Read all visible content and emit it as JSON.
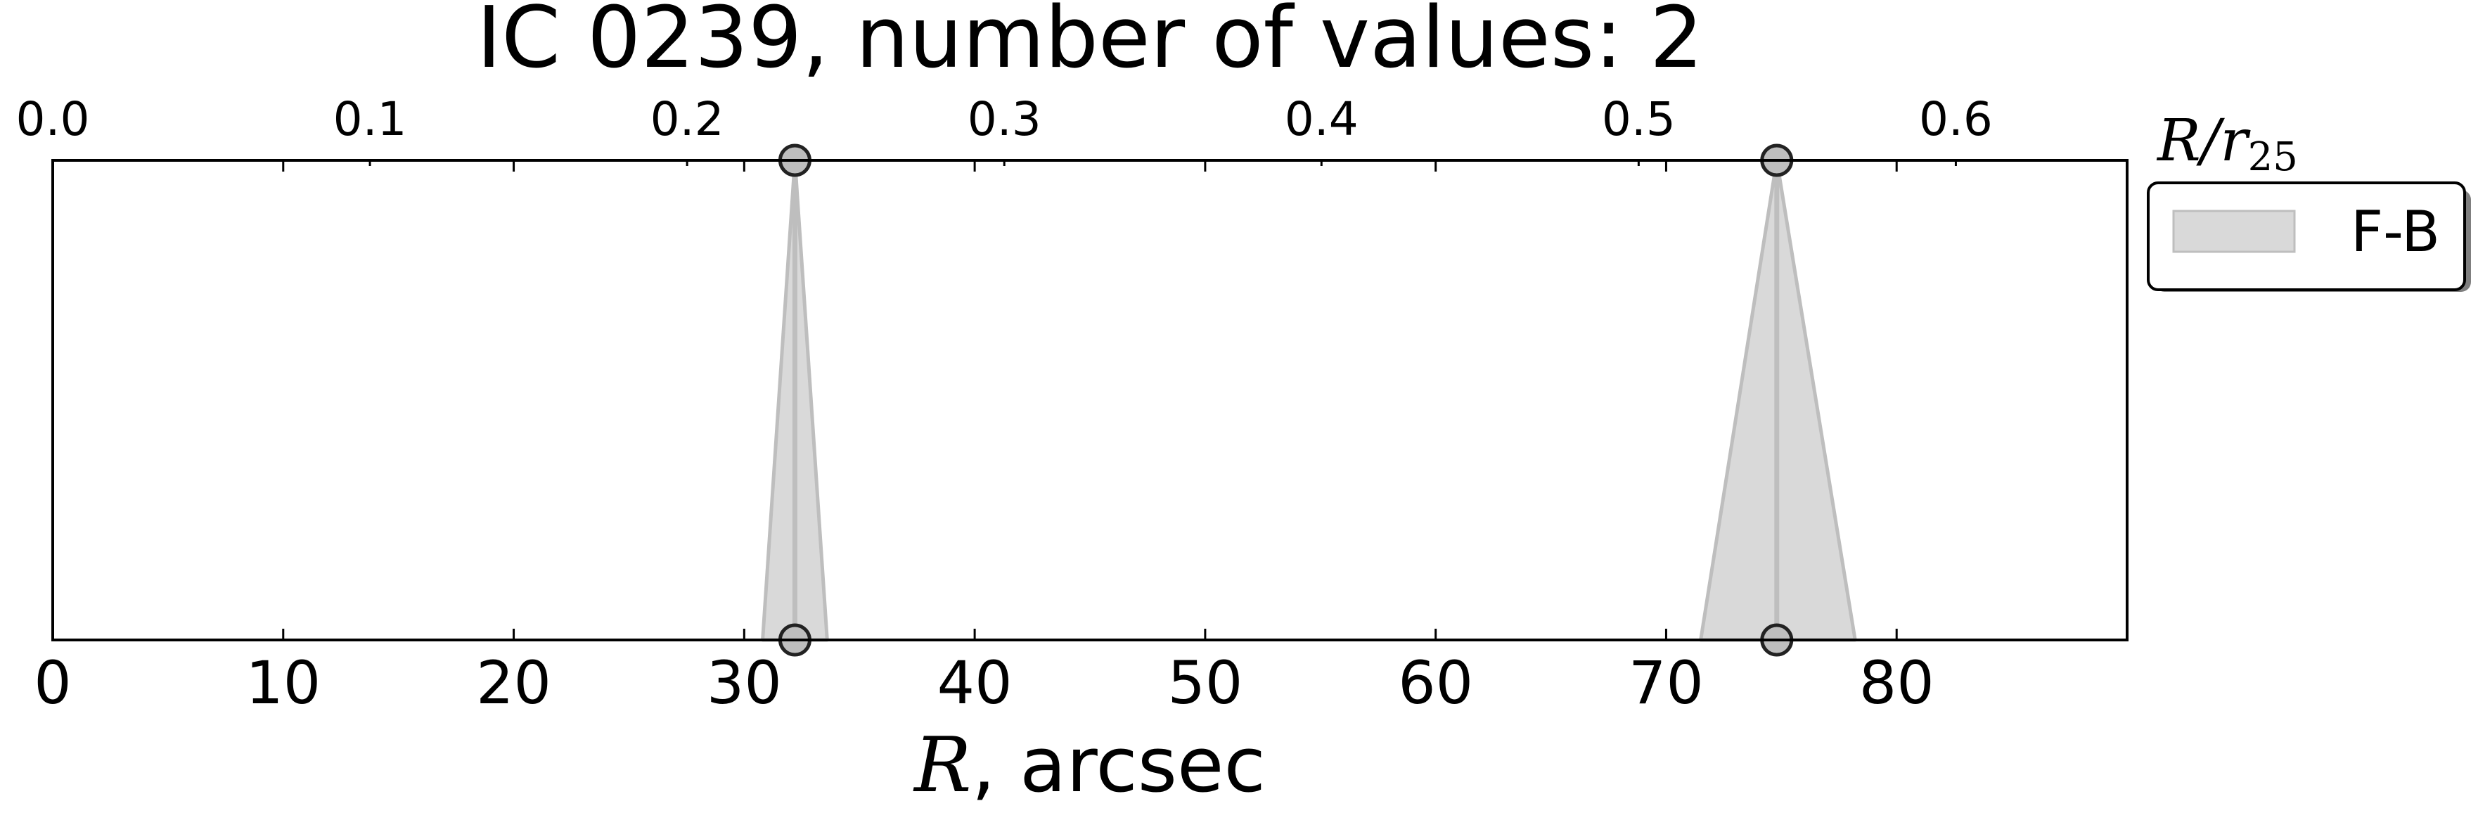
{
  "chart_data": {
    "type": "scatter",
    "title": "IC 0239, number of values: 2",
    "xlabel_var": "R",
    "xlabel_rest": ", arcsec",
    "top_axis_label_main": "R/r",
    "top_axis_label_sub": "25",
    "xlim": [
      0,
      90
    ],
    "x_ticks": [
      0,
      10,
      20,
      30,
      40,
      50,
      60,
      70,
      80
    ],
    "x_tick_labels": [
      "0",
      "10",
      "20",
      "30",
      "40",
      "50",
      "60",
      "70",
      "80"
    ],
    "top_xlim": [
      0.0,
      0.654
    ],
    "top_ticks": [
      0.0,
      0.1,
      0.2,
      0.3,
      0.4,
      0.5,
      0.6
    ],
    "top_tick_labels": [
      "0.0",
      "0.1",
      "0.2",
      "0.3",
      "0.4",
      "0.5",
      "0.6"
    ],
    "grid": false,
    "legend_position": "right, outside plot",
    "series": [
      {
        "name": "F-B",
        "color": "#bebebe",
        "fill_color": "#d9d9d9",
        "points": [
          {
            "x": 32.2,
            "x_low": 30.8,
            "x_high": 33.6
          },
          {
            "x": 74.8,
            "x_low": 71.5,
            "x_high": 78.2
          }
        ]
      }
    ]
  }
}
